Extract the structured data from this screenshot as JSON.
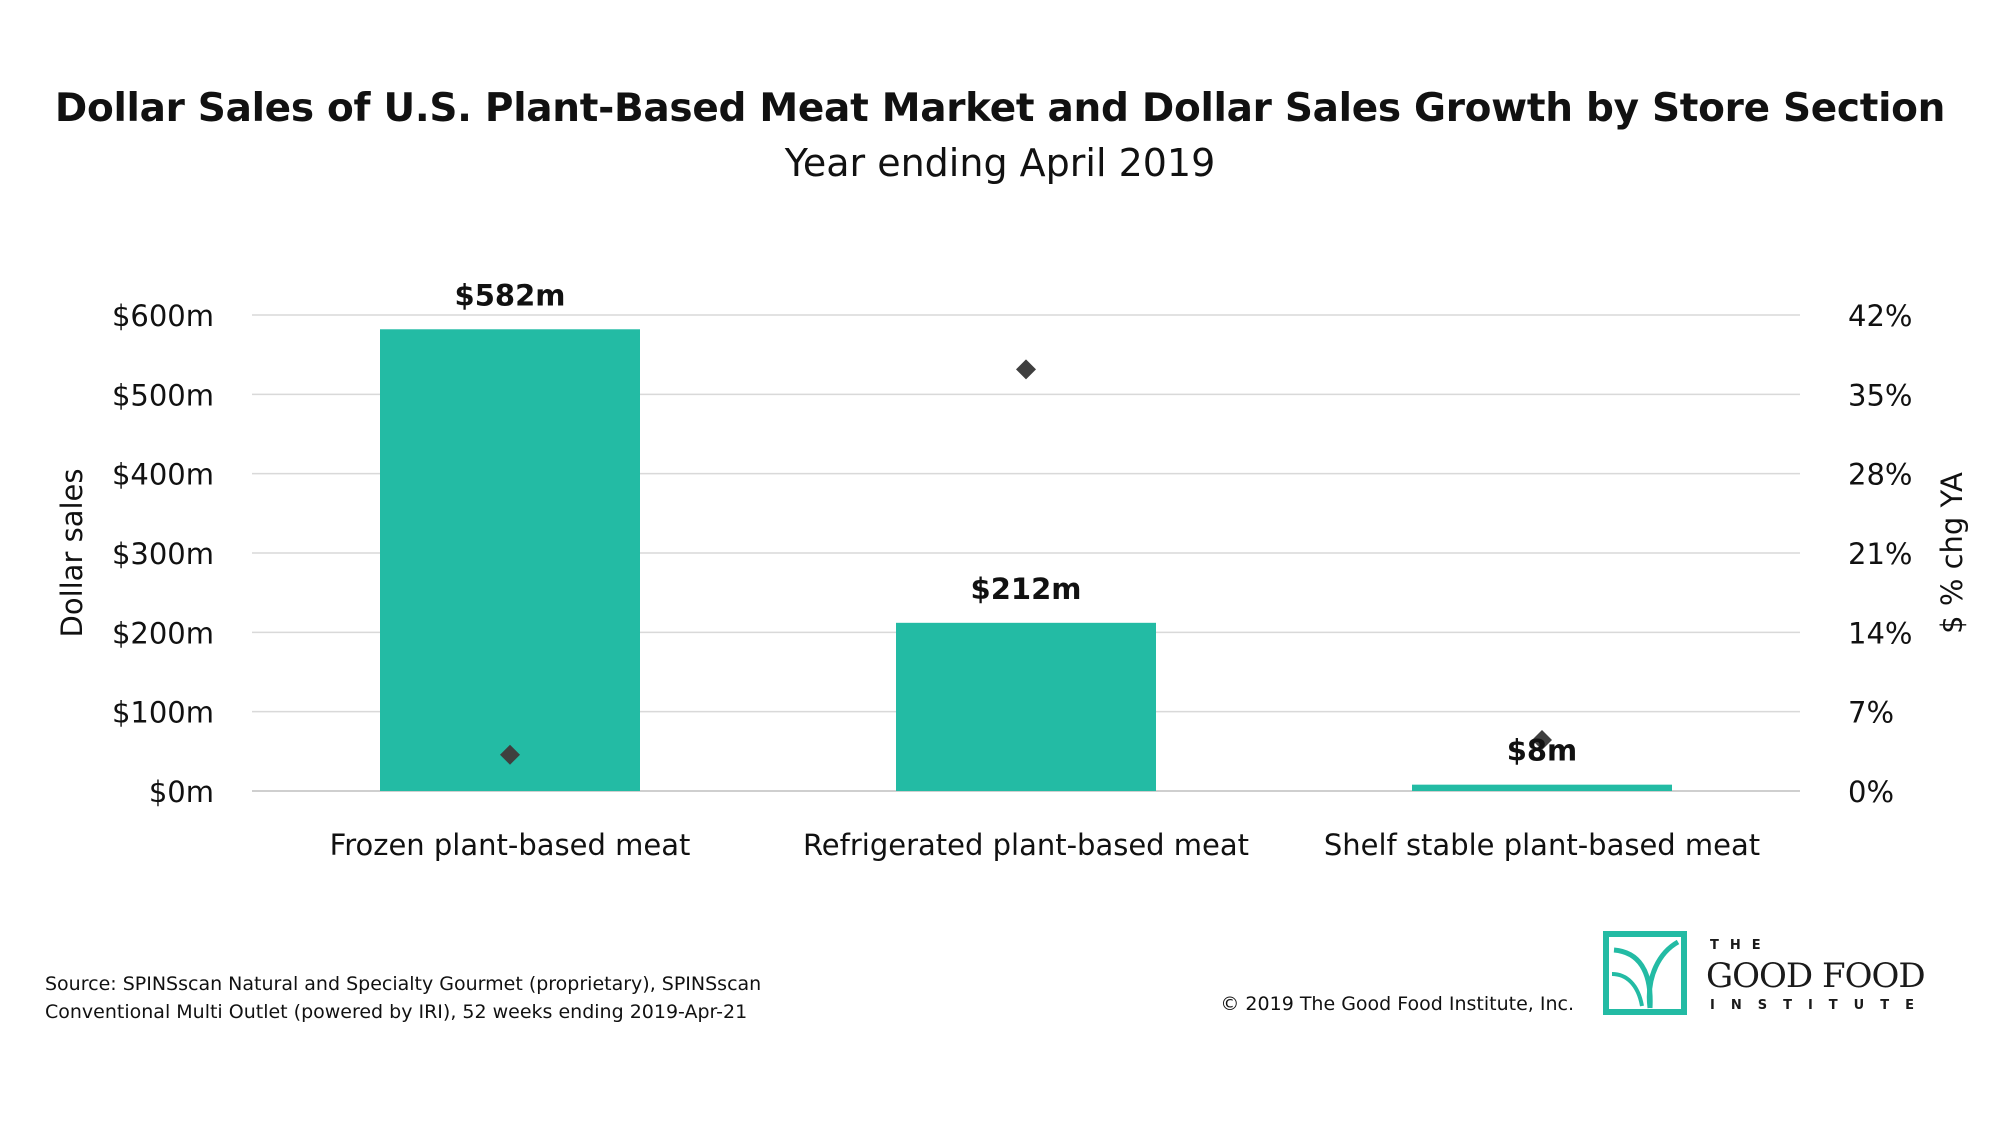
{
  "chart_data": {
    "type": "bar",
    "title": "Dollar Sales of U.S. Plant-Based Meat Market and Dollar Sales Growth by Store Section",
    "subtitle": "Year ending April 2019",
    "categories": [
      "Frozen plant-based meat",
      "Refrigerated plant-based meat",
      "Shelf stable plant-based meat"
    ],
    "series": [
      {
        "type": "bar",
        "axis": "left",
        "values": [
          582,
          212,
          8
        ],
        "data_labels": [
          "$582m",
          "$212m",
          "$8m"
        ],
        "color": "#23BBA4"
      },
      {
        "type": "scatter",
        "axis": "right",
        "marker": "diamond",
        "values": [
          3.2,
          37.2,
          4.5
        ],
        "color": "#3f3f3f"
      }
    ],
    "ylabel": "Dollar sales",
    "ylim": [
      0,
      600
    ],
    "yticks": [
      "$0m",
      "$100m",
      "$200m",
      "$300m",
      "$400m",
      "$500m",
      "$600m"
    ],
    "y2label": "$ % chg YA",
    "y2lim": [
      0,
      42
    ],
    "y2ticks": [
      "0%",
      "7%",
      "14%",
      "21%",
      "28%",
      "35%",
      "42%"
    ],
    "grid": true
  },
  "footer": {
    "source_line1": "Source: SPINSscan Natural and Specialty Gourmet (proprietary), SPINSscan",
    "source_line2": "Conventional Multi Outlet (powered by IRI), 52 weeks ending 2019-Apr-21",
    "copyright": "© 2019 The Good Food Institute, Inc."
  },
  "logo": {
    "the": "THE",
    "main": "GOOD FOOD",
    "institute": "INSTITUTE",
    "color": "#23BBA4"
  }
}
